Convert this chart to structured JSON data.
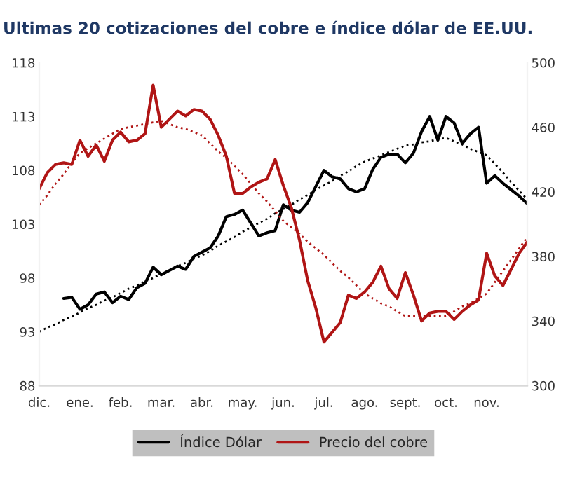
{
  "chart_data": {
    "type": "line",
    "title": "Ultimas 20 cotizaciones del cobre e índice dólar de EE.UU.",
    "categories": [
      "dic.",
      null,
      null,
      null,
      null,
      "ene.",
      null,
      null,
      null,
      null,
      "feb.",
      null,
      null,
      null,
      null,
      "mar.",
      null,
      null,
      null,
      null,
      "abr.",
      null,
      null,
      null,
      null,
      "may.",
      null,
      null,
      null,
      null,
      "jun.",
      null,
      null,
      null,
      null,
      "jul.",
      null,
      null,
      null,
      null,
      "ago.",
      null,
      null,
      null,
      null,
      "sept.",
      null,
      null,
      null,
      null,
      "oct.",
      null,
      null,
      null,
      null,
      "nov.",
      null,
      null,
      null,
      null,
      null
    ],
    "ylim": [
      88,
      118
    ],
    "yticks": [
      88,
      93,
      98,
      103,
      108,
      113,
      118
    ],
    "y2lim": [
      300,
      500
    ],
    "y2ticks": [
      300,
      340,
      380,
      420,
      460,
      500
    ],
    "legend": "bottom",
    "grid": false,
    "series": [
      {
        "name": "Índice Dólar",
        "color": "#000000",
        "axis": "y",
        "values": [
          null,
          null,
          null,
          96.1,
          96.2,
          95.1,
          95.5,
          96.5,
          96.7,
          95.7,
          96.3,
          96.0,
          97.1,
          97.5,
          99.0,
          98.3,
          98.7,
          99.1,
          98.8,
          100.0,
          100.4,
          100.8,
          101.9,
          103.7,
          103.9,
          104.3,
          103.1,
          101.9,
          102.2,
          102.4,
          104.8,
          104.3,
          104.1,
          105.0,
          106.5,
          108.0,
          107.4,
          107.2,
          106.3,
          106.0,
          106.3,
          108.1,
          109.2,
          109.5,
          109.5,
          108.7,
          109.6,
          111.6,
          113.0,
          110.8,
          113.0,
          112.4,
          110.5,
          111.4,
          112.0,
          106.8,
          107.5,
          106.8,
          106.2,
          105.6,
          104.9
        ]
      },
      {
        "name": "Precio del cobre",
        "color": "#b01515",
        "axis": "y2",
        "values": [
          422,
          432,
          437,
          438,
          437,
          452,
          442,
          449,
          439,
          452,
          457,
          451,
          452,
          456,
          486,
          460,
          465,
          470,
          467,
          471,
          470,
          465,
          455,
          442,
          419,
          419,
          423,
          426,
          428,
          440,
          424,
          410,
          390,
          365,
          348,
          327,
          333,
          339,
          356,
          354,
          358,
          364,
          374,
          360,
          354,
          370,
          356,
          340,
          345,
          346,
          346,
          341,
          346,
          350,
          353,
          382,
          368,
          362,
          372,
          382,
          389
        ]
      },
      {
        "color": "#000000",
        "axis": "y",
        "line_style": "dotted",
        "values": [
          93.0,
          93.4,
          93.7,
          94.1,
          94.4,
          94.8,
          95.2,
          95.5,
          95.9,
          96.2,
          96.6,
          97.0,
          97.3,
          97.7,
          98.0,
          98.4,
          98.7,
          99.1,
          99.4,
          99.8,
          100.1,
          100.5,
          101.0,
          101.4,
          101.8,
          102.3,
          102.7,
          103.1,
          103.5,
          104.0,
          104.4,
          104.8,
          105.3,
          105.7,
          106.2,
          106.6,
          107.0,
          107.5,
          107.9,
          108.4,
          108.8,
          109.1,
          109.4,
          109.7,
          110.0,
          110.3,
          110.4,
          110.6,
          110.7,
          110.9,
          111.0,
          110.7,
          110.4,
          110.0,
          109.7,
          109.4,
          108.6,
          107.8,
          106.9,
          106.1,
          105.3
        ]
      },
      {
        "color": "#b01515",
        "axis": "y2",
        "line_style": "dotted",
        "values": [
          412,
          418,
          425,
          431,
          438,
          444,
          447,
          450,
          453,
          456,
          459,
          460,
          461,
          462,
          463,
          464,
          462,
          460,
          459,
          457,
          455,
          450,
          445,
          441,
          436,
          431,
          425,
          419,
          414,
          408,
          402,
          398,
          394,
          389,
          385,
          381,
          376,
          371,
          367,
          362,
          357,
          354,
          351,
          349,
          346,
          343,
          343,
          343,
          343,
          343,
          343,
          346,
          349,
          351,
          354,
          357,
          364,
          371,
          378,
          385,
          392
        ]
      }
    ]
  }
}
